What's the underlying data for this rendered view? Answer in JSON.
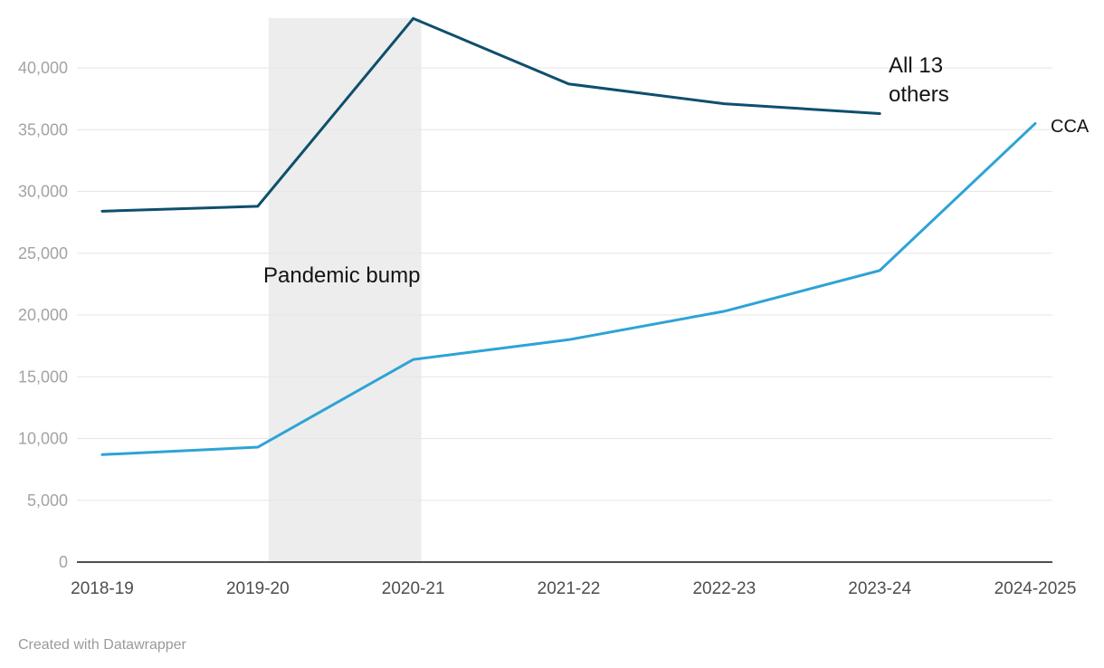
{
  "footer": {
    "credit": "Created with Datawrapper"
  },
  "annotations": {
    "pandemic": "Pandemic bump",
    "others_line1": "All 13",
    "others_line2": "others",
    "cca": "CCA"
  },
  "chart_data": {
    "type": "line",
    "categories": [
      "2018-19",
      "2019-20",
      "2020-21",
      "2021-22",
      "2022-23",
      "2023-24",
      "2024-2025"
    ],
    "series": [
      {
        "name": "All 13 others",
        "color": "#0e4f6e",
        "values": [
          28400,
          28800,
          44000,
          38700,
          37100,
          36300,
          null
        ]
      },
      {
        "name": "CCA",
        "color": "#2ea3d6",
        "values": [
          8700,
          9300,
          16400,
          18000,
          20300,
          23600,
          35500
        ]
      }
    ],
    "ylim": [
      0,
      44000
    ],
    "yticks": [
      0,
      5000,
      10000,
      15000,
      20000,
      25000,
      30000,
      35000,
      40000
    ],
    "ytick_labels": [
      "0",
      "5,000",
      "10,000",
      "15,000",
      "20,000",
      "25,000",
      "30,000",
      "35,000",
      "40,000"
    ],
    "grid": true,
    "band": {
      "label": "Pandemic bump",
      "from_category": "2019-20",
      "to_category": "2020-21",
      "color": "#ededed"
    },
    "legend_position": "inline-labels",
    "title": "",
    "xlabel": "",
    "ylabel": ""
  }
}
